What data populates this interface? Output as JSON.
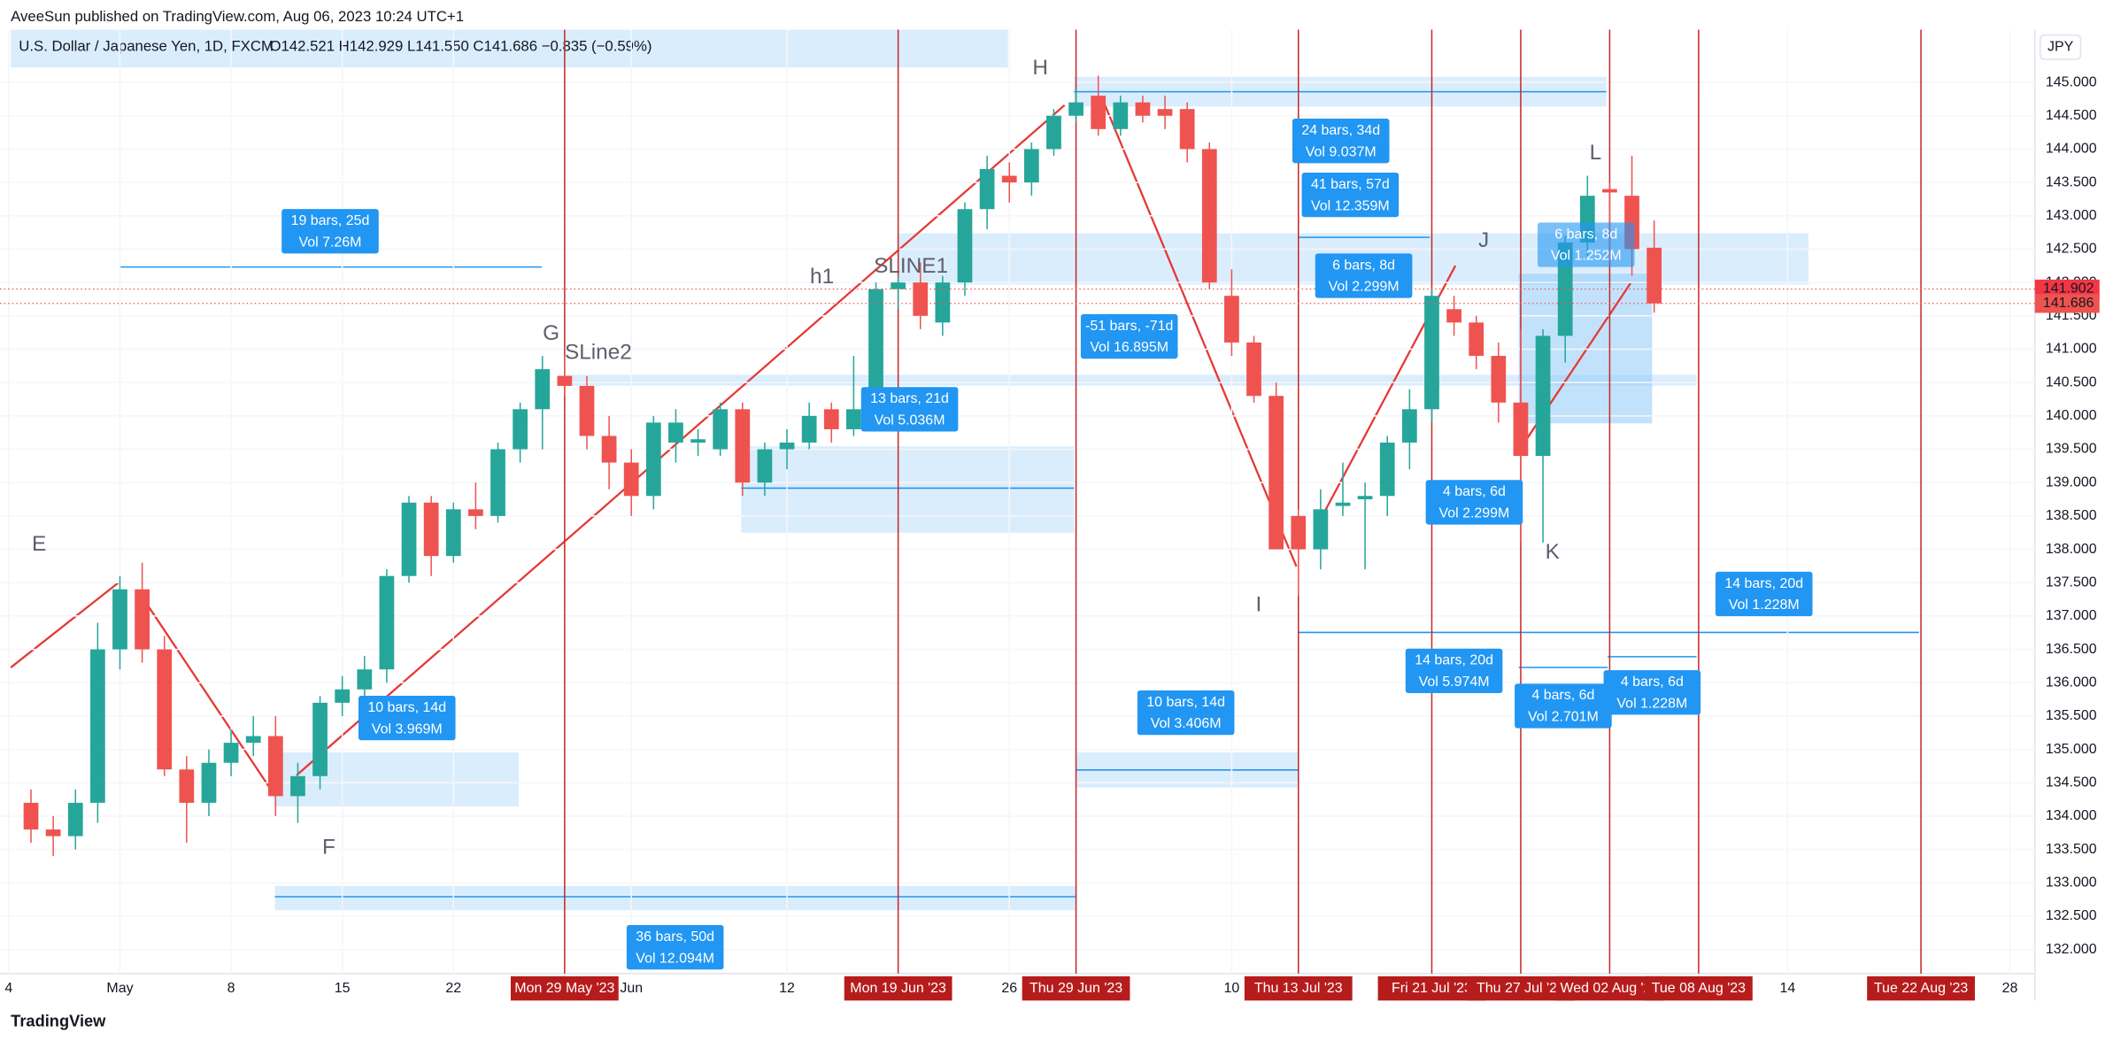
{
  "header": {
    "publisher": "AveeSun published on TradingView.com, Aug 06, 2023 10:24 UTC+1",
    "brand": "TradingView"
  },
  "chart_data": {
    "type": "candlestick",
    "title": "U.S. Dollar / Japanese Yen, 1D, FXCM",
    "ohlc_legend": "O142.521 H142.929 L141.550 C141.686 −0.835 (−0.59%)",
    "currency": "JPY",
    "x": [
      "2023-04-25",
      "2023-04-26",
      "2023-04-27",
      "2023-04-28",
      "2023-05-01",
      "2023-05-02",
      "2023-05-03",
      "2023-05-04",
      "2023-05-05",
      "2023-05-08",
      "2023-05-09",
      "2023-05-10",
      "2023-05-11",
      "2023-05-12",
      "2023-05-15",
      "2023-05-16",
      "2023-05-17",
      "2023-05-18",
      "2023-05-19",
      "2023-05-22",
      "2023-05-23",
      "2023-05-24",
      "2023-05-25",
      "2023-05-26",
      "2023-05-29",
      "2023-05-30",
      "2023-05-31",
      "2023-06-01",
      "2023-06-02",
      "2023-06-05",
      "2023-06-06",
      "2023-06-07",
      "2023-06-08",
      "2023-06-09",
      "2023-06-12",
      "2023-06-13",
      "2023-06-14",
      "2023-06-15",
      "2023-06-16",
      "2023-06-19",
      "2023-06-20",
      "2023-06-21",
      "2023-06-22",
      "2023-06-23",
      "2023-06-26",
      "2023-06-27",
      "2023-06-28",
      "2023-06-29",
      "2023-06-30",
      "2023-07-03",
      "2023-07-04",
      "2023-07-05",
      "2023-07-06",
      "2023-07-07",
      "2023-07-10",
      "2023-07-11",
      "2023-07-12",
      "2023-07-13",
      "2023-07-14",
      "2023-07-17",
      "2023-07-18",
      "2023-07-19",
      "2023-07-20",
      "2023-07-21",
      "2023-07-24",
      "2023-07-25",
      "2023-07-26",
      "2023-07-27",
      "2023-07-28",
      "2023-07-31",
      "2023-08-01",
      "2023-08-02",
      "2023-08-03",
      "2023-08-04"
    ],
    "open": [
      134.2,
      133.8,
      133.7,
      134.2,
      136.5,
      137.4,
      136.5,
      134.7,
      134.2,
      134.8,
      135.1,
      135.2,
      134.3,
      134.6,
      135.7,
      135.9,
      136.2,
      137.6,
      138.7,
      137.9,
      138.6,
      138.5,
      139.5,
      140.1,
      140.6,
      140.45,
      139.7,
      139.3,
      138.8,
      139.6,
      139.6,
      139.5,
      140.1,
      139.0,
      139.5,
      139.6,
      140.1,
      139.8,
      140.1,
      141.9,
      142.0,
      141.4,
      142.0,
      143.1,
      143.6,
      143.5,
      144.0,
      144.5,
      144.8,
      144.3,
      144.7,
      144.6,
      144.6,
      144.0,
      141.8,
      141.1,
      140.3,
      138.5,
      138.0,
      138.65,
      138.75,
      138.8,
      139.6,
      140.1,
      141.6,
      141.4,
      140.9,
      140.2,
      139.4,
      141.2,
      142.6,
      143.4,
      143.3,
      142.521
    ],
    "high": [
      134.4,
      134.0,
      134.4,
      136.9,
      137.6,
      137.8,
      136.7,
      134.9,
      135.0,
      135.3,
      135.5,
      135.5,
      134.8,
      135.8,
      136.1,
      136.4,
      137.7,
      138.8,
      138.8,
      138.7,
      139.0,
      139.6,
      140.2,
      140.9,
      140.9,
      140.6,
      140.0,
      139.5,
      140.0,
      140.1,
      139.8,
      140.2,
      140.2,
      139.6,
      139.8,
      140.2,
      140.2,
      140.9,
      142.0,
      142.1,
      142.3,
      142.1,
      143.2,
      143.9,
      143.8,
      144.1,
      144.6,
      144.9,
      145.1,
      144.8,
      144.8,
      144.8,
      144.7,
      144.1,
      142.2,
      141.2,
      140.5,
      138.6,
      138.9,
      139.3,
      139.0,
      139.7,
      140.4,
      141.9,
      141.8,
      141.5,
      141.1,
      141.3,
      141.3,
      142.7,
      143.6,
      143.5,
      143.9,
      142.929
    ],
    "low": [
      133.6,
      133.4,
      133.5,
      133.9,
      136.2,
      136.3,
      134.6,
      133.6,
      134.0,
      134.6,
      134.9,
      134.0,
      133.9,
      134.4,
      135.5,
      135.6,
      136.0,
      137.5,
      137.6,
      137.8,
      138.3,
      138.4,
      139.3,
      139.5,
      140.3,
      139.5,
      138.9,
      138.5,
      138.6,
      139.3,
      139.4,
      139.4,
      138.8,
      138.8,
      139.2,
      139.5,
      139.6,
      139.7,
      139.9,
      141.6,
      141.3,
      141.2,
      141.8,
      142.8,
      143.2,
      143.3,
      143.9,
      144.4,
      144.2,
      144.2,
      144.4,
      144.3,
      143.8,
      141.9,
      140.9,
      140.2,
      138.0,
      137.3,
      137.7,
      138.5,
      137.7,
      138.5,
      139.2,
      139.9,
      141.2,
      140.7,
      139.9,
      138.1,
      138.1,
      140.8,
      142.4,
      142.3,
      142.1,
      141.55
    ],
    "close": [
      133.8,
      133.7,
      134.2,
      136.5,
      137.4,
      136.5,
      134.7,
      134.2,
      134.8,
      135.1,
      135.2,
      134.3,
      134.6,
      135.7,
      135.9,
      136.2,
      137.6,
      138.7,
      137.9,
      138.6,
      138.5,
      139.5,
      140.1,
      140.7,
      140.45,
      139.7,
      139.3,
      138.8,
      139.9,
      139.9,
      139.65,
      140.1,
      139.0,
      139.5,
      139.6,
      140.0,
      139.8,
      140.1,
      141.9,
      142.0,
      141.5,
      142.0,
      143.1,
      143.7,
      143.5,
      144.0,
      144.5,
      144.7,
      144.3,
      144.7,
      144.5,
      144.5,
      144.0,
      142.0,
      141.1,
      140.3,
      138.0,
      138.0,
      138.6,
      138.7,
      138.8,
      139.6,
      140.1,
      141.8,
      141.4,
      140.9,
      140.2,
      139.4,
      141.2,
      142.6,
      143.3,
      143.35,
      142.5,
      141.686
    ],
    "up_color": "#26a69a",
    "down_color": "#ef5350",
    "ylim": [
      131.64,
      145.79
    ],
    "yticks": [
      {
        "value": 132,
        "label": "132.000"
      },
      {
        "value": 132.5,
        "label": "132.500"
      },
      {
        "value": 133,
        "label": "133.000"
      },
      {
        "value": 133.5,
        "label": "133.500"
      },
      {
        "value": 134,
        "label": "134.000"
      },
      {
        "value": 134.5,
        "label": "134.500"
      },
      {
        "value": 135,
        "label": "135.000"
      },
      {
        "value": 135.5,
        "label": "135.500"
      },
      {
        "value": 136,
        "label": "136.000"
      },
      {
        "value": 136.5,
        "label": "136.500"
      },
      {
        "value": 137,
        "label": "137.000"
      },
      {
        "value": 137.5,
        "label": "137.500"
      },
      {
        "value": 138,
        "label": "138.000"
      },
      {
        "value": 138.5,
        "label": "138.500"
      },
      {
        "value": 139,
        "label": "139.000"
      },
      {
        "value": 139.5,
        "label": "139.500"
      },
      {
        "value": 140,
        "label": "140.000"
      },
      {
        "value": 140.5,
        "label": "140.500"
      },
      {
        "value": 141,
        "label": "141.000"
      },
      {
        "value": 141.5,
        "label": "141.500"
      },
      {
        "value": 142,
        "label": "142.000"
      },
      {
        "value": 142.5,
        "label": "142.500"
      },
      {
        "value": 143,
        "label": "143.000"
      },
      {
        "value": 143.5,
        "label": "143.500"
      },
      {
        "value": 144,
        "label": "144.000"
      },
      {
        "value": 144.5,
        "label": "144.500"
      },
      {
        "value": 145,
        "label": "145.000"
      }
    ],
    "xticks": [
      {
        "value": "2023-04-24",
        "label": "4"
      },
      {
        "value": "2023-05-01",
        "label": "May"
      },
      {
        "value": "2023-05-08",
        "label": "8"
      },
      {
        "value": "2023-05-15",
        "label": "15"
      },
      {
        "value": "2023-05-22",
        "label": "22"
      },
      {
        "value": "2023-06-01",
        "label": "Jun"
      },
      {
        "value": "2023-06-12",
        "label": "12"
      },
      {
        "value": "2023-06-26",
        "label": "26"
      },
      {
        "value": "2023-07-10",
        "label": "10"
      },
      {
        "value": "2023-08-14",
        "label": "14"
      },
      {
        "value": "2023-08-28",
        "label": "28"
      }
    ],
    "price_labels": [
      141.902,
      141.686
    ],
    "time_markers": [
      {
        "label": "Mon 29 May '23",
        "date": "2023-05-29"
      },
      {
        "label": "Mon 19 Jun '23",
        "date": "2023-06-19"
      },
      {
        "label": "Thu 29 Jun '23",
        "date": "2023-06-29"
      },
      {
        "label": "Thu 13 Jul '23",
        "date": "2023-07-13"
      },
      {
        "label": "Fri 21 Jul '23",
        "date": "2023-07-21"
      },
      {
        "label": "Thu 27 Jul '23",
        "date": "2023-07-27"
      },
      {
        "label": "Wed 02 Aug '23",
        "date": "2023-08-02"
      },
      {
        "label": "Tue 08 Aug '23",
        "date": "2023-08-08"
      },
      {
        "label": "Tue 22 Aug '23",
        "date": "2023-08-22"
      }
    ],
    "annotations": [
      "E",
      "F",
      "G",
      "SLine2",
      "h1",
      "SLINE1",
      "H",
      "I",
      "J",
      "K",
      "L"
    ],
    "measurements": [
      [
        "19 bars, 25d",
        "Vol 7.26M"
      ],
      [
        "10 bars, 14d",
        "Vol 3.969M"
      ],
      [
        "36 bars, 50d",
        "Vol 12.094M"
      ],
      [
        "13 bars, 21d",
        "Vol 5.036M"
      ],
      [
        "-51 bars, -71d",
        "Vol 16.895M"
      ],
      [
        "10 bars, 14d",
        "Vol 3.406M"
      ],
      [
        "24 bars, 34d",
        "Vol 9.037M"
      ],
      [
        "41 bars, 57d",
        "Vol 12.359M"
      ],
      [
        "6 bars, 8d",
        "Vol 2.299M"
      ],
      [
        "4 bars, 6d",
        "Vol 2.299M"
      ],
      [
        "14 bars, 20d",
        "Vol 5.974M"
      ],
      [
        "4 bars, 6d",
        "Vol 2.701M"
      ],
      [
        "4 bars, 6d",
        "Vol 1.228M"
      ],
      [
        "6 bars, 8d",
        "Vol 1.252M"
      ],
      [
        "14 bars, 20d",
        "Vol 1.228M"
      ]
    ]
  }
}
